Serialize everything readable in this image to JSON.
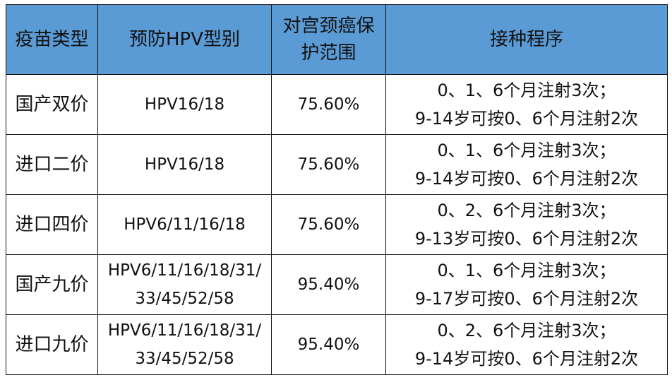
{
  "table": {
    "headers": [
      {
        "lines": [
          "疫苗类型"
        ]
      },
      {
        "lines": [
          "预防HPV型别"
        ]
      },
      {
        "lines": [
          "对宫颈癌保",
          "护范围"
        ]
      },
      {
        "lines": [
          "接种程序"
        ]
      }
    ],
    "header_color": "#5b9bd5",
    "rows": [
      {
        "type": "国产双价",
        "strains": [
          "HPV16/18"
        ],
        "protection": "75.60%",
        "schedule": [
          "0、1、6个月注射3次；",
          "9-14岁可按0、6个月注射2次"
        ]
      },
      {
        "type": "进口二价",
        "strains": [
          "HPV16/18"
        ],
        "protection": "75.60%",
        "schedule": [
          "0、1、6个月注射3次；",
          "9-14岁可按0、6个月注射2次"
        ]
      },
      {
        "type": "进口四价",
        "strains": [
          "HPV6/11/16/18"
        ],
        "protection": "75.60%",
        "schedule": [
          "0、2、6个月注射3次；",
          "9-13岁可按0、6个月注射2次"
        ]
      },
      {
        "type": "国产九价",
        "strains": [
          "HPV6/11/16/18/31/",
          "33/45/52/58"
        ],
        "protection": "95.40%",
        "schedule": [
          "0、1、6个月注射3次；",
          "9-17岁可按0、6个月注射2次"
        ]
      },
      {
        "type": "进口九价",
        "strains": [
          "HPV6/11/16/18/31/",
          "33/45/52/58"
        ],
        "protection": "95.40%",
        "schedule": [
          "0、2、6个月注射3次；",
          "9-14岁可按0、6个月注射2次"
        ]
      }
    ]
  }
}
